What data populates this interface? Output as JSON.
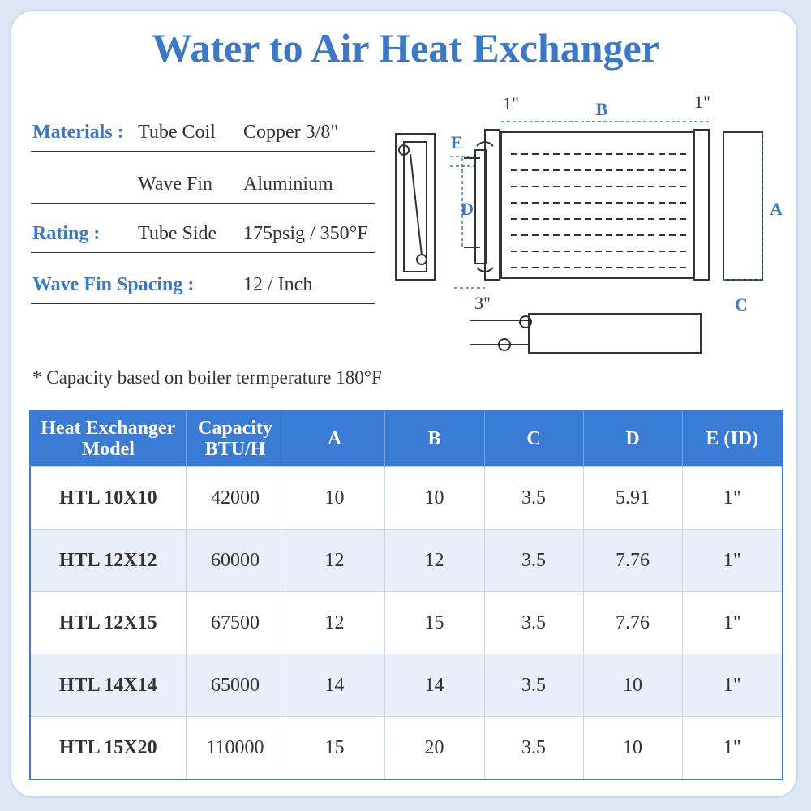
{
  "title": "Water to Air Heat Exchanger",
  "specs": [
    {
      "label": "Materials :",
      "item": "Tube Coil",
      "value": "Copper  3/8\""
    },
    {
      "item": "Wave Fin",
      "value": "Aluminium"
    },
    {
      "label": "Rating :",
      "item": "Tube Side",
      "value": "175psig / 350°F"
    },
    {
      "label": "Wave Fin Spacing :",
      "value": "12 / Inch"
    }
  ],
  "diagram": {
    "labels": {
      "left_margin": "1\"",
      "b": "B",
      "right_margin": "1\"",
      "e": "E",
      "d": "D",
      "a": "A",
      "depth": "3\"",
      "c": "C"
    }
  },
  "note": "* Capacity based on boiler termperature 180°F",
  "table": {
    "headers": [
      [
        "Heat Exchanger",
        "Model"
      ],
      [
        "Capacity",
        "BTU/H"
      ],
      [
        "A"
      ],
      [
        "B"
      ],
      [
        "C"
      ],
      [
        "D"
      ],
      [
        "E (ID)"
      ]
    ],
    "rows": [
      [
        "HTL 10X10",
        "42000",
        "10",
        "10",
        "3.5",
        "5.91",
        "1\""
      ],
      [
        "HTL 12X12",
        "60000",
        "12",
        "12",
        "3.5",
        "7.76",
        "1\""
      ],
      [
        "HTL 12X15",
        "67500",
        "12",
        "15",
        "3.5",
        "7.76",
        "1\""
      ],
      [
        "HTL 14X14",
        "65000",
        "14",
        "14",
        "3.5",
        "10",
        "1\""
      ],
      [
        "HTL 15X20",
        "110000",
        "15",
        "20",
        "3.5",
        "10",
        "1\""
      ]
    ]
  }
}
